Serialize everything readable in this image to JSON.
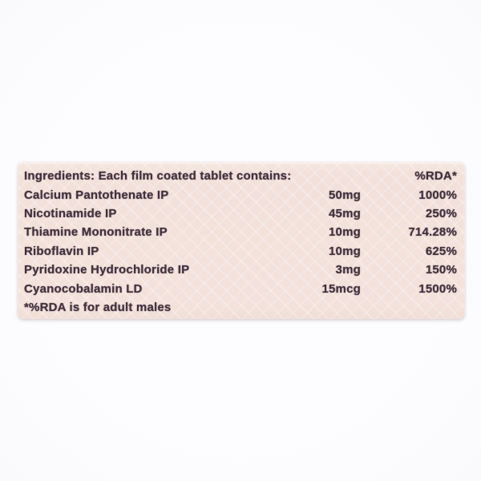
{
  "label": {
    "header": {
      "left": "Ingredients: Each film coated tablet contains:",
      "right": "%RDA*"
    },
    "rows": [
      {
        "name": "Calcium Pantothenate IP",
        "amount": "50mg",
        "rda": "1000%"
      },
      {
        "name": "Nicotinamide IP",
        "amount": "45mg",
        "rda": "250%"
      },
      {
        "name": "Thiamine Mononitrate IP",
        "amount": "10mg",
        "rda": "714.28%"
      },
      {
        "name": "Riboflavin IP",
        "amount": "10mg",
        "rda": "625%"
      },
      {
        "name": "Pyridoxine Hydrochloride IP",
        "amount": "3mg",
        "rda": "150%"
      },
      {
        "name": "Cyanocobalamin LD",
        "amount": "15mcg",
        "rda": "1500%"
      }
    ],
    "footnote": "*%RDA is for adult males",
    "colors": {
      "label_background": "#f3e2db",
      "text": "#41303d",
      "page_background": "#fcfcfe"
    }
  }
}
